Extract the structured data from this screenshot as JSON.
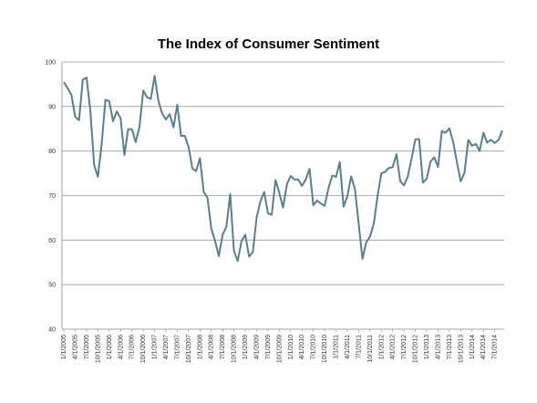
{
  "chart_data": {
    "type": "line",
    "title": "The Index of Consumer Sentiment",
    "xlabel": "",
    "ylabel": "",
    "ylim": [
      40,
      100
    ],
    "yticks": [
      "40",
      "50",
      "60",
      "70",
      "80",
      "90",
      "100"
    ],
    "grid": true,
    "x_tick_labels": [
      "1/1/2005",
      "4/1/2005",
      "7/1/2005",
      "10/1/2005",
      "1/1/2006",
      "4/1/2006",
      "7/1/2006",
      "10/1/2006",
      "1/1/2007",
      "4/1/2007",
      "7/1/2007",
      "10/1/2007",
      "1/1/2008",
      "4/1/2008",
      "7/1/2008",
      "10/1/2008",
      "1/1/2009",
      "4/1/2009",
      "7/1/2009",
      "10/1/2009",
      "1/1/2010",
      "4/1/2010",
      "7/1/2010",
      "10/1/2010",
      "1/1/2011",
      "4/1/2011",
      "7/1/2011",
      "10/1/2011",
      "1/1/2012",
      "4/1/2012",
      "7/1/2012",
      "10/1/2012",
      "1/1/2013",
      "4/1/2013",
      "7/1/2013",
      "10/1/2013",
      "1/1/2014",
      "4/1/2014",
      "7/1/2014"
    ],
    "series_color": "#5b7f8a",
    "series": [
      {
        "values": [
          95.5,
          94.1,
          92.6,
          87.7,
          86.9,
          96.0,
          96.5,
          89.1,
          76.9,
          74.2,
          81.6,
          91.5,
          91.2,
          86.7,
          88.9,
          87.4,
          79.1,
          84.9,
          84.9,
          82.0,
          85.4,
          93.6,
          92.1,
          91.7,
          96.9,
          91.3,
          88.4,
          87.1,
          88.3,
          85.3,
          90.4,
          83.4,
          83.4,
          80.9,
          76.1,
          75.5,
          78.4,
          70.8,
          69.5,
          62.6,
          59.8,
          56.4,
          61.2,
          63.0,
          70.3,
          57.6,
          55.3,
          59.8,
          61.2,
          56.3,
          57.3,
          65.1,
          68.7,
          70.8,
          66.0,
          65.7,
          73.5,
          70.6,
          67.3,
          72.5,
          74.4,
          73.6,
          73.6,
          72.2,
          73.6,
          76.0,
          67.8,
          68.9,
          68.2,
          67.7,
          71.6,
          74.5,
          74.2,
          77.5,
          67.5,
          69.8,
          74.3,
          71.5,
          63.7,
          55.8,
          59.5,
          60.8,
          63.7,
          69.9,
          75.0,
          75.3,
          76.2,
          76.4,
          79.3,
          73.2,
          72.3,
          74.3,
          78.3,
          82.6,
          82.7,
          72.9,
          73.8,
          77.6,
          78.6,
          76.4,
          84.5,
          84.1,
          85.1,
          82.1,
          77.5,
          73.2,
          75.1,
          82.5,
          81.2,
          81.6,
          80.0,
          84.1,
          81.9,
          82.5,
          81.8,
          82.5,
          84.6
        ]
      }
    ]
  }
}
